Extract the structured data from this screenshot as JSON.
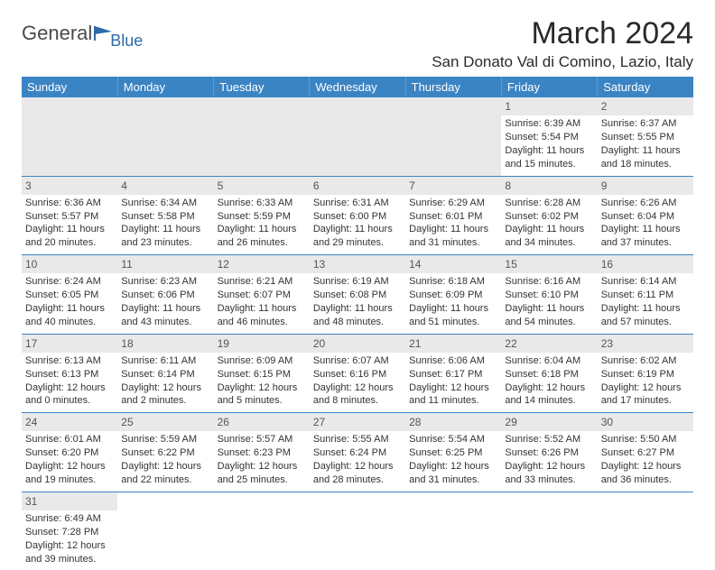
{
  "logo": {
    "text1": "General",
    "text2": "Blue",
    "color1": "#4a4a4a",
    "color2": "#2f6aa8",
    "icon_color": "#2f6aa8"
  },
  "title": "March 2024",
  "location": "San Donato Val di Comino, Lazio, Italy",
  "colors": {
    "header_bg": "#3b84c4",
    "header_text": "#ffffff",
    "row_border": "#3b84c4",
    "daynum_bg": "#e9e9e9",
    "body_text": "#333333"
  },
  "day_headers": [
    "Sunday",
    "Monday",
    "Tuesday",
    "Wednesday",
    "Thursday",
    "Friday",
    "Saturday"
  ],
  "weeks": [
    [
      null,
      null,
      null,
      null,
      null,
      {
        "n": "1",
        "sr": "Sunrise: 6:39 AM",
        "ss": "Sunset: 5:54 PM",
        "d1": "Daylight: 11 hours",
        "d2": "and 15 minutes."
      },
      {
        "n": "2",
        "sr": "Sunrise: 6:37 AM",
        "ss": "Sunset: 5:55 PM",
        "d1": "Daylight: 11 hours",
        "d2": "and 18 minutes."
      }
    ],
    [
      {
        "n": "3",
        "sr": "Sunrise: 6:36 AM",
        "ss": "Sunset: 5:57 PM",
        "d1": "Daylight: 11 hours",
        "d2": "and 20 minutes."
      },
      {
        "n": "4",
        "sr": "Sunrise: 6:34 AM",
        "ss": "Sunset: 5:58 PM",
        "d1": "Daylight: 11 hours",
        "d2": "and 23 minutes."
      },
      {
        "n": "5",
        "sr": "Sunrise: 6:33 AM",
        "ss": "Sunset: 5:59 PM",
        "d1": "Daylight: 11 hours",
        "d2": "and 26 minutes."
      },
      {
        "n": "6",
        "sr": "Sunrise: 6:31 AM",
        "ss": "Sunset: 6:00 PM",
        "d1": "Daylight: 11 hours",
        "d2": "and 29 minutes."
      },
      {
        "n": "7",
        "sr": "Sunrise: 6:29 AM",
        "ss": "Sunset: 6:01 PM",
        "d1": "Daylight: 11 hours",
        "d2": "and 31 minutes."
      },
      {
        "n": "8",
        "sr": "Sunrise: 6:28 AM",
        "ss": "Sunset: 6:02 PM",
        "d1": "Daylight: 11 hours",
        "d2": "and 34 minutes."
      },
      {
        "n": "9",
        "sr": "Sunrise: 6:26 AM",
        "ss": "Sunset: 6:04 PM",
        "d1": "Daylight: 11 hours",
        "d2": "and 37 minutes."
      }
    ],
    [
      {
        "n": "10",
        "sr": "Sunrise: 6:24 AM",
        "ss": "Sunset: 6:05 PM",
        "d1": "Daylight: 11 hours",
        "d2": "and 40 minutes."
      },
      {
        "n": "11",
        "sr": "Sunrise: 6:23 AM",
        "ss": "Sunset: 6:06 PM",
        "d1": "Daylight: 11 hours",
        "d2": "and 43 minutes."
      },
      {
        "n": "12",
        "sr": "Sunrise: 6:21 AM",
        "ss": "Sunset: 6:07 PM",
        "d1": "Daylight: 11 hours",
        "d2": "and 46 minutes."
      },
      {
        "n": "13",
        "sr": "Sunrise: 6:19 AM",
        "ss": "Sunset: 6:08 PM",
        "d1": "Daylight: 11 hours",
        "d2": "and 48 minutes."
      },
      {
        "n": "14",
        "sr": "Sunrise: 6:18 AM",
        "ss": "Sunset: 6:09 PM",
        "d1": "Daylight: 11 hours",
        "d2": "and 51 minutes."
      },
      {
        "n": "15",
        "sr": "Sunrise: 6:16 AM",
        "ss": "Sunset: 6:10 PM",
        "d1": "Daylight: 11 hours",
        "d2": "and 54 minutes."
      },
      {
        "n": "16",
        "sr": "Sunrise: 6:14 AM",
        "ss": "Sunset: 6:11 PM",
        "d1": "Daylight: 11 hours",
        "d2": "and 57 minutes."
      }
    ],
    [
      {
        "n": "17",
        "sr": "Sunrise: 6:13 AM",
        "ss": "Sunset: 6:13 PM",
        "d1": "Daylight: 12 hours",
        "d2": "and 0 minutes."
      },
      {
        "n": "18",
        "sr": "Sunrise: 6:11 AM",
        "ss": "Sunset: 6:14 PM",
        "d1": "Daylight: 12 hours",
        "d2": "and 2 minutes."
      },
      {
        "n": "19",
        "sr": "Sunrise: 6:09 AM",
        "ss": "Sunset: 6:15 PM",
        "d1": "Daylight: 12 hours",
        "d2": "and 5 minutes."
      },
      {
        "n": "20",
        "sr": "Sunrise: 6:07 AM",
        "ss": "Sunset: 6:16 PM",
        "d1": "Daylight: 12 hours",
        "d2": "and 8 minutes."
      },
      {
        "n": "21",
        "sr": "Sunrise: 6:06 AM",
        "ss": "Sunset: 6:17 PM",
        "d1": "Daylight: 12 hours",
        "d2": "and 11 minutes."
      },
      {
        "n": "22",
        "sr": "Sunrise: 6:04 AM",
        "ss": "Sunset: 6:18 PM",
        "d1": "Daylight: 12 hours",
        "d2": "and 14 minutes."
      },
      {
        "n": "23",
        "sr": "Sunrise: 6:02 AM",
        "ss": "Sunset: 6:19 PM",
        "d1": "Daylight: 12 hours",
        "d2": "and 17 minutes."
      }
    ],
    [
      {
        "n": "24",
        "sr": "Sunrise: 6:01 AM",
        "ss": "Sunset: 6:20 PM",
        "d1": "Daylight: 12 hours",
        "d2": "and 19 minutes."
      },
      {
        "n": "25",
        "sr": "Sunrise: 5:59 AM",
        "ss": "Sunset: 6:22 PM",
        "d1": "Daylight: 12 hours",
        "d2": "and 22 minutes."
      },
      {
        "n": "26",
        "sr": "Sunrise: 5:57 AM",
        "ss": "Sunset: 6:23 PM",
        "d1": "Daylight: 12 hours",
        "d2": "and 25 minutes."
      },
      {
        "n": "27",
        "sr": "Sunrise: 5:55 AM",
        "ss": "Sunset: 6:24 PM",
        "d1": "Daylight: 12 hours",
        "d2": "and 28 minutes."
      },
      {
        "n": "28",
        "sr": "Sunrise: 5:54 AM",
        "ss": "Sunset: 6:25 PM",
        "d1": "Daylight: 12 hours",
        "d2": "and 31 minutes."
      },
      {
        "n": "29",
        "sr": "Sunrise: 5:52 AM",
        "ss": "Sunset: 6:26 PM",
        "d1": "Daylight: 12 hours",
        "d2": "and 33 minutes."
      },
      {
        "n": "30",
        "sr": "Sunrise: 5:50 AM",
        "ss": "Sunset: 6:27 PM",
        "d1": "Daylight: 12 hours",
        "d2": "and 36 minutes."
      }
    ],
    [
      {
        "n": "31",
        "sr": "Sunrise: 6:49 AM",
        "ss": "Sunset: 7:28 PM",
        "d1": "Daylight: 12 hours",
        "d2": "and 39 minutes."
      },
      null,
      null,
      null,
      null,
      null,
      null
    ]
  ]
}
